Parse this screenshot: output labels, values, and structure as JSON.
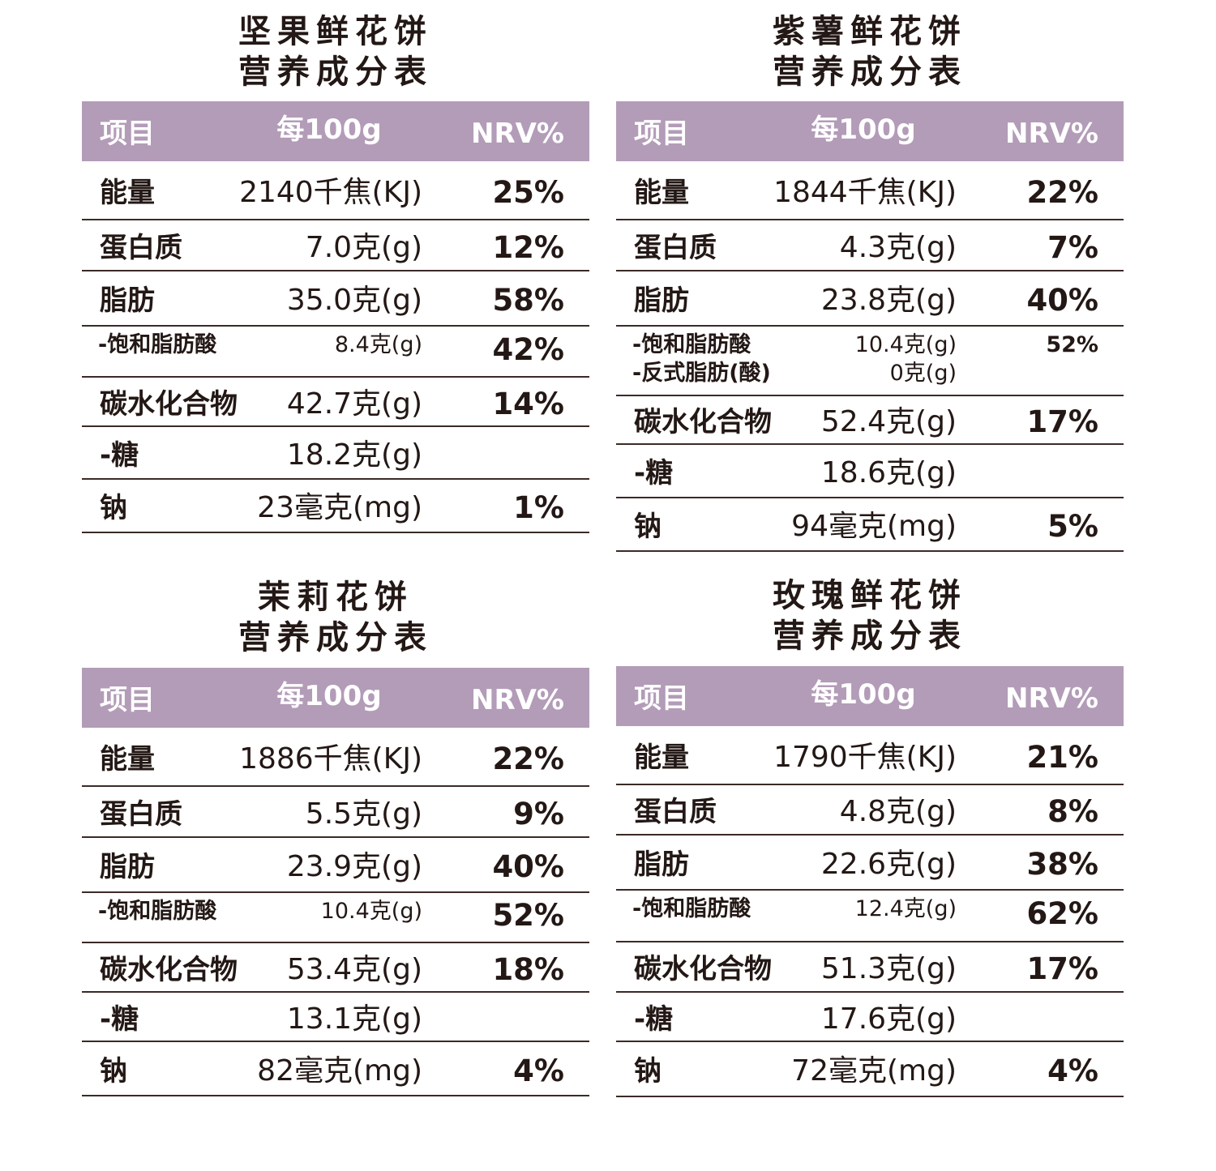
{
  "tables": [
    {
      "title": [
        "坚果鲜花饼",
        "营养成分表"
      ],
      "header": [
        "项目",
        "每100g",
        "NRV%"
      ],
      "rows": [
        {
          "name": "能量",
          "amount": "2140千焦(KJ)",
          "nrv": "25%"
        },
        {
          "name": "蛋白质",
          "amount": "7.0克(g)",
          "nrv": "12%"
        },
        {
          "name": "脂肪",
          "amount": "35.0克(g)",
          "nrv": "58%"
        },
        {
          "name": "-饱和脂肪酸",
          "amount": "8.4克(g)",
          "nrv": "42%"
        },
        {
          "name": "碳水化合物",
          "amount": "42.7克(g)",
          "nrv": "14%"
        },
        {
          "name": "-糖",
          "amount": "18.2克(g)"
        },
        {
          "name": "钠",
          "amount": "23毫克(mg)",
          "nrv": "1%"
        }
      ]
    },
    {
      "title": [
        "紫薯鲜花饼",
        "营养成分表"
      ],
      "header": [
        "项目",
        "每100g",
        "NRV%"
      ],
      "rows": [
        {
          "name": "能量",
          "amount": "1844千焦(KJ)",
          "nrv": "22%"
        },
        {
          "name": "蛋白质",
          "amount": "4.3克(g)",
          "nrv": "7%"
        },
        {
          "name": "脂肪",
          "amount": "23.8克(g)",
          "nrv": "40%"
        },
        {
          "name": [
            "-饱和脂肪酸",
            "-反式脂肪(酸)"
          ],
          "amount": [
            "10.4克(g)",
            "0克(g)"
          ],
          "nrv": "52%"
        },
        {
          "name": "碳水化合物",
          "amount": "52.4克(g)",
          "nrv": "17%"
        },
        {
          "name": "-糖",
          "amount": "18.6克(g)"
        },
        {
          "name": "钠",
          "amount": "94毫克(mg)",
          "nrv": "5%"
        }
      ]
    },
    {
      "title": [
        "茉莉花饼",
        "营养成分表"
      ],
      "header": [
        "项目",
        "每100g",
        "NRV%"
      ],
      "rows": [
        {
          "name": "能量",
          "amount": "1886千焦(KJ)",
          "nrv": "22%"
        },
        {
          "name": "蛋白质",
          "amount": "5.5克(g)",
          "nrv": "9%"
        },
        {
          "name": "脂肪",
          "amount": "23.9克(g)",
          "nrv": "40%"
        },
        {
          "name": "-饱和脂肪酸",
          "amount": "10.4克(g)",
          "nrv": "52%"
        },
        {
          "name": "碳水化合物",
          "amount": "53.4克(g)",
          "nrv": "18%"
        },
        {
          "name": "-糖",
          "amount": "13.1克(g)"
        },
        {
          "name": "钠",
          "amount": "82毫克(mg)",
          "nrv": "4%"
        }
      ]
    },
    {
      "title": [
        "玫瑰鲜花饼",
        "营养成分表"
      ],
      "header": [
        "项目",
        "每100g",
        "NRV%"
      ],
      "rows": [
        {
          "name": "能量",
          "amount": "1790千焦(KJ)",
          "nrv": "21%"
        },
        {
          "name": "蛋白质",
          "amount": "4.8克(g)",
          "nrv": "8%"
        },
        {
          "name": "脂肪",
          "amount": "22.6克(g)",
          "nrv": "38%"
        },
        {
          "name": "-饱和脂肪酸",
          "amount": "12.4克(g)",
          "nrv": "62%"
        },
        {
          "name": "碳水化合物",
          "amount": "51.3克(g)",
          "nrv": "17%"
        },
        {
          "name": "-糖",
          "amount": "17.6克(g)"
        },
        {
          "name": "钠",
          "amount": "72毫克(mg)",
          "nrv": "4%"
        }
      ]
    }
  ]
}
